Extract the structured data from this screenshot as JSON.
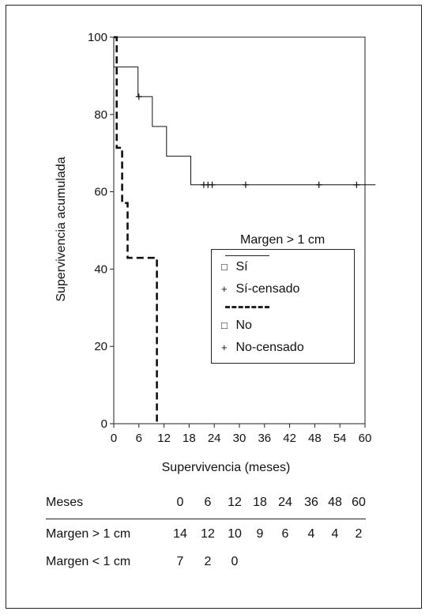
{
  "chart_data": {
    "type": "line",
    "subtype": "kaplan-meier step",
    "xlabel": "Supervivencia (meses)",
    "ylabel": "Supervivencia acumulada",
    "xlim": [
      0,
      60
    ],
    "ylim": [
      0,
      100
    ],
    "x_ticks": [
      "0",
      "6",
      "12",
      "18",
      "24",
      "30",
      "36",
      "42",
      "48",
      "54",
      "60"
    ],
    "y_ticks": [
      "0",
      "20",
      "40",
      "60",
      "80",
      "100"
    ],
    "grid": false,
    "legend_title": "Margen > 1 cm",
    "legend_position": "center-right",
    "series": [
      {
        "name": "Sí",
        "style": "solid",
        "steps": [
          [
            0,
            100
          ],
          [
            0,
            92.3
          ],
          [
            5.8,
            92.3
          ],
          [
            5.8,
            84.6
          ],
          [
            9.2,
            84.6
          ],
          [
            9.2,
            76.9
          ],
          [
            12.6,
            76.9
          ],
          [
            12.6,
            69.2
          ],
          [
            18.4,
            69.2
          ],
          [
            18.4,
            61.8
          ],
          [
            62.5,
            61.8
          ]
        ],
        "censored_label": "Sí-censado",
        "censored_x": [
          6,
          21.5,
          22.5,
          23.5,
          31.5,
          49,
          58
        ]
      },
      {
        "name": "No",
        "style": "dashed",
        "steps": [
          [
            0,
            100
          ],
          [
            0.7,
            100
          ],
          [
            0.7,
            71.4
          ],
          [
            2,
            71.4
          ],
          [
            2,
            57.1
          ],
          [
            3.3,
            57.1
          ],
          [
            3.3,
            42.9
          ],
          [
            10.3,
            42.9
          ],
          [
            10.3,
            0
          ]
        ],
        "censored_label": "No-censado",
        "censored_x": []
      }
    ],
    "risk_table": {
      "header_label": "Meses",
      "columns": [
        "0",
        "6",
        "12",
        "18",
        "24",
        "36",
        "48",
        "60"
      ],
      "rows": [
        {
          "label": "Margen > 1 cm",
          "values": [
            "14",
            "12",
            "10",
            "9",
            "6",
            "4",
            "4",
            "2"
          ]
        },
        {
          "label": "Margen < 1 cm",
          "values": [
            "7",
            "2",
            "0",
            "",
            "",
            "",
            "",
            ""
          ]
        }
      ]
    }
  },
  "legend": {
    "title": "Margen > 1 cm",
    "items": [
      {
        "symbol": "□",
        "label": "Sí"
      },
      {
        "symbol": "+",
        "label": "Sí-censado"
      },
      {
        "symbol": "□",
        "label": "No"
      },
      {
        "symbol": "+",
        "label": "No-censado"
      }
    ]
  },
  "colors": {
    "ink": "#111111",
    "background": "#ffffff"
  }
}
